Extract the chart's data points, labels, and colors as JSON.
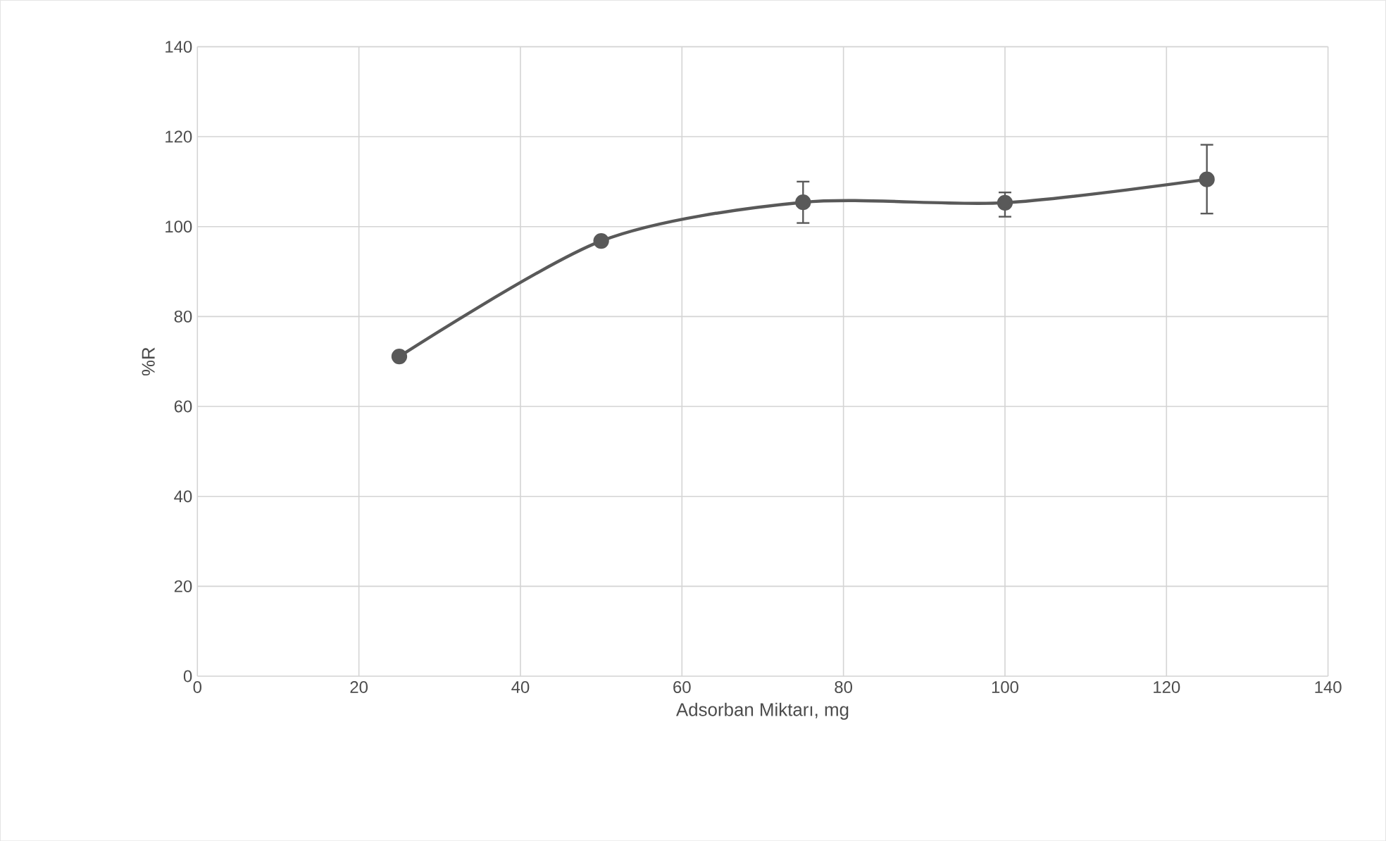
{
  "chart_data": {
    "type": "line",
    "xlabel": "Adsorban Miktarı, mg",
    "ylabel": "%R",
    "x": [
      25,
      50,
      75,
      100,
      125
    ],
    "series": [
      {
        "color": "#595959",
        "values": [
          71.1,
          96.8,
          105.4,
          105.3,
          110.5
        ],
        "errors": [
          null,
          null,
          [
            100.8,
            110.0
          ],
          [
            102.2,
            107.6
          ],
          [
            102.9,
            118.2
          ]
        ]
      }
    ],
    "xlim": [
      0,
      140
    ],
    "ylim": [
      0,
      140
    ],
    "xticks": [
      0,
      20,
      40,
      60,
      80,
      100,
      120,
      140
    ],
    "yticks": [
      0,
      20,
      40,
      60,
      80,
      100,
      120,
      140
    ],
    "grid": true,
    "marker": "circle",
    "line_style": "solid"
  }
}
